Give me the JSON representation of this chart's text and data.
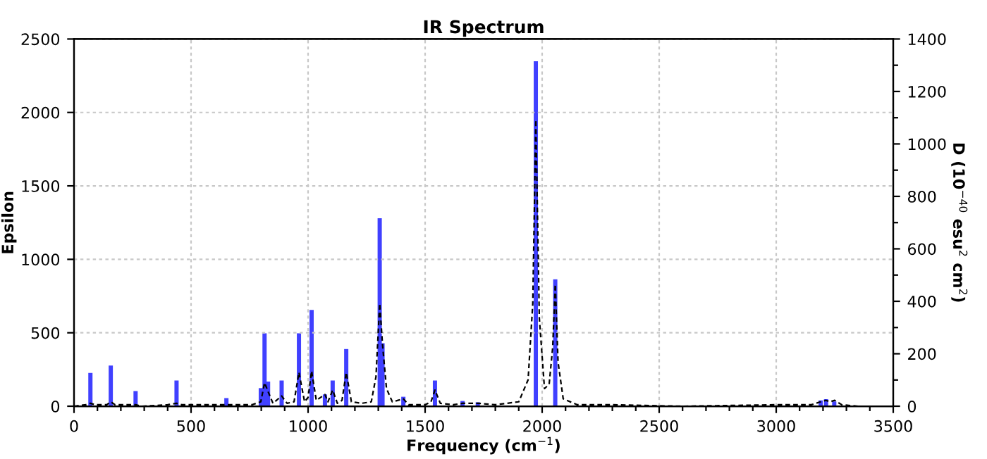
{
  "chart_data": {
    "type": "line",
    "title": "IR Spectrum",
    "xlabel": "Frequency (cm$^{−1}$)",
    "ylabel": "Epsilon",
    "y2label": "D (10$^{−40}$ esu$^{2}$ cm$^{2}$)",
    "xlim": [
      0,
      3500
    ],
    "ylim": [
      0,
      2500
    ],
    "y2lim": [
      0,
      1400
    ],
    "xticks": [
      0,
      {
        "value": 100,
        "label": null
      },
      {
        "value": 200,
        "label": null
      },
      {
        "value": 300,
        "label": null
      },
      {
        "value": 400,
        "label": null
      },
      500,
      {
        "value": 600,
        "label": null
      },
      {
        "value": 700,
        "label": null
      },
      {
        "value": 800,
        "label": null
      },
      {
        "value": 900,
        "label": null
      },
      1000,
      {
        "value": 1100,
        "label": null
      },
      {
        "value": 1200,
        "label": null
      },
      {
        "value": 1300,
        "label": null
      },
      {
        "value": 1400,
        "label": null
      },
      1500,
      {
        "value": 1600,
        "label": null
      },
      {
        "value": 1700,
        "label": null
      },
      {
        "value": 1800,
        "label": null
      },
      {
        "value": 1900,
        "label": null
      },
      2000,
      {
        "value": 2100,
        "label": null
      },
      {
        "value": 2200,
        "label": null
      },
      {
        "value": 2300,
        "label": null
      },
      {
        "value": 2400,
        "label": null
      },
      2500,
      {
        "value": 2600,
        "label": null
      },
      {
        "value": 2700,
        "label": null
      },
      {
        "value": 2800,
        "label": null
      },
      {
        "value": 2900,
        "label": null
      },
      3000,
      {
        "value": 3100,
        "label": null
      },
      {
        "value": 3200,
        "label": null
      },
      {
        "value": 3300,
        "label": null
      },
      {
        "value": 3400,
        "label": null
      },
      3500
    ],
    "yticks": [
      0,
      500,
      1000,
      1500,
      2000,
      2500
    ],
    "y2ticks": [
      0,
      {
        "value": 100,
        "label": null
      },
      200,
      {
        "value": 300,
        "label": null
      },
      400,
      {
        "value": 500,
        "label": null
      },
      600,
      {
        "value": 700,
        "label": null
      },
      800,
      {
        "value": 900,
        "label": null
      },
      1000,
      {
        "value": 1100,
        "label": null
      },
      1200,
      {
        "value": 1300,
        "label": null
      },
      1400
    ],
    "grid": true,
    "marker": "none",
    "series": [
      {
        "color": "#000000",
        "line_style": "dashed",
        "x": [
          0,
          50,
          70,
          90,
          140,
          157,
          175,
          200,
          230,
          263,
          290,
          400,
          438,
          460,
          500,
          600,
          651,
          700,
          760,
          798,
          814,
          829,
          850,
          887,
          910,
          940,
          961,
          985,
          1000,
          1015,
          1035,
          1072,
          1085,
          1105,
          1125,
          1145,
          1163,
          1185,
          1230,
          1270,
          1290,
          1306,
          1318,
          1335,
          1360,
          1407,
          1430,
          1500,
          1525,
          1542,
          1565,
          1620,
          1660,
          1725,
          1800,
          1900,
          1940,
          1960,
          1973,
          1988,
          2010,
          2030,
          2045,
          2056,
          2068,
          2090,
          2150,
          2300,
          2600,
          3000,
          3150,
          3190,
          3213,
          3230,
          3250,
          3280,
          3350,
          3500
        ],
        "values": [
          0,
          10,
          20,
          10,
          10,
          30,
          10,
          10,
          10,
          10,
          0,
          10,
          20,
          10,
          10,
          10,
          10,
          10,
          10,
          30,
          160,
          100,
          20,
          70,
          20,
          30,
          230,
          30,
          60,
          240,
          40,
          80,
          30,
          110,
          20,
          40,
          230,
          30,
          20,
          30,
          200,
          700,
          420,
          120,
          30,
          50,
          10,
          10,
          30,
          110,
          20,
          10,
          20,
          20,
          10,
          30,
          180,
          700,
          1950,
          600,
          120,
          150,
          400,
          830,
          300,
          50,
          10,
          10,
          0,
          10,
          10,
          30,
          40,
          30,
          40,
          10,
          0,
          0
        ]
      },
      {
        "type": "bar",
        "axis": "y2",
        "color": "#4040ff",
        "x": [
          70,
          157,
          263,
          438,
          651,
          798,
          814,
          829,
          887,
          961,
          1015,
          1072,
          1105,
          1163,
          1306,
          1318,
          1407,
          1542,
          1660,
          1725,
          1973,
          2056,
          3190,
          3213,
          3248
        ],
        "values": [
          127,
          155,
          58,
          98,
          31,
          69,
          278,
          94,
          98,
          278,
          367,
          45,
          98,
          218,
          717,
          240,
          36,
          98,
          20,
          15,
          1315,
          484,
          22,
          27,
          18
        ]
      }
    ]
  }
}
